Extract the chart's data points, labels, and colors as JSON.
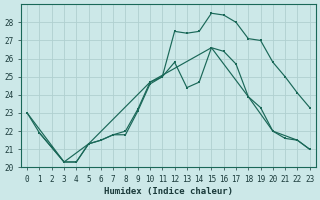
{
  "xlabel": "Humidex (Indice chaleur)",
  "xlim": [
    -0.5,
    23.5
  ],
  "ylim": [
    20,
    29
  ],
  "yticks": [
    20,
    21,
    22,
    23,
    24,
    25,
    26,
    27,
    28
  ],
  "xticks": [
    0,
    1,
    2,
    3,
    4,
    5,
    6,
    7,
    8,
    9,
    10,
    11,
    12,
    13,
    14,
    15,
    16,
    17,
    18,
    19,
    20,
    21,
    22,
    23
  ],
  "bg_color": "#cce8e8",
  "grid_color": "#b0d0d0",
  "line_color": "#1a6858",
  "line1_x": [
    0,
    1,
    2,
    3,
    4,
    5,
    6,
    7,
    8,
    9,
    10,
    11,
    12,
    13,
    14,
    15,
    16,
    17,
    18,
    19,
    20,
    21,
    22,
    23
  ],
  "line1_y": [
    23.0,
    21.9,
    21.1,
    20.3,
    20.3,
    21.3,
    21.5,
    21.8,
    22.0,
    23.2,
    24.7,
    25.0,
    25.8,
    24.4,
    24.7,
    26.6,
    26.4,
    25.7,
    23.9,
    23.3,
    22.0,
    21.6,
    21.5,
    21.0
  ],
  "line2_x": [
    1,
    2,
    3,
    4,
    5,
    6,
    7,
    8,
    9,
    10,
    11,
    12,
    13,
    14,
    15,
    16,
    17,
    18,
    19,
    20,
    21,
    22,
    23
  ],
  "line2_y": [
    21.9,
    21.1,
    20.3,
    20.3,
    21.3,
    21.5,
    21.8,
    21.8,
    23.1,
    24.6,
    25.0,
    27.5,
    27.4,
    27.5,
    28.5,
    28.4,
    28.0,
    27.1,
    27.0,
    25.8,
    25.0,
    24.1,
    23.3
  ],
  "line3_x": [
    0,
    3,
    5,
    10,
    15,
    18,
    20,
    22,
    23
  ],
  "line3_y": [
    23.0,
    20.3,
    21.3,
    24.7,
    26.6,
    23.9,
    22.0,
    21.5,
    21.0
  ]
}
